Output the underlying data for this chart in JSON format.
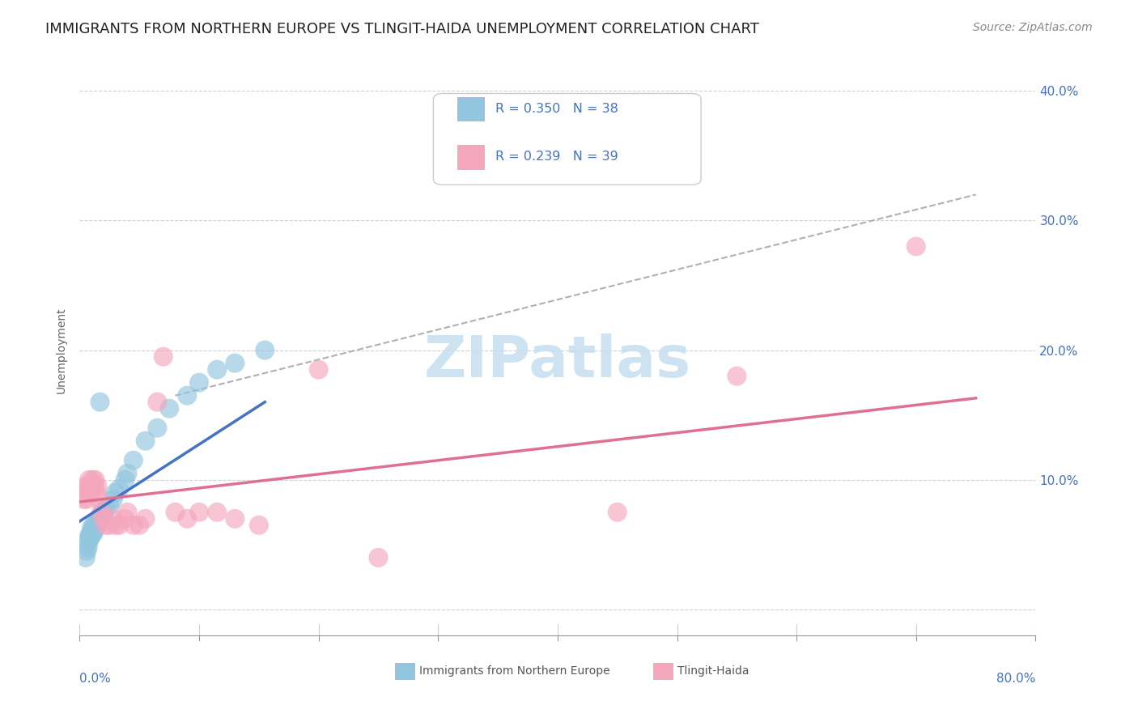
{
  "title": "IMMIGRANTS FROM NORTHERN EUROPE VS TLINGIT-HAIDA UNEMPLOYMENT CORRELATION CHART",
  "source": "Source: ZipAtlas.com",
  "ylabel": "Unemployment",
  "xlim": [
    0,
    0.8
  ],
  "ylim": [
    -0.02,
    0.42
  ],
  "xticks": [
    0.0,
    0.1,
    0.2,
    0.3,
    0.4,
    0.5,
    0.6,
    0.7,
    0.8
  ],
  "yticks": [
    0.0,
    0.1,
    0.2,
    0.3,
    0.4
  ],
  "yticklabels_right": [
    "",
    "10.0%",
    "20.0%",
    "30.0%",
    "40.0%"
  ],
  "blue_color": "#92c5de",
  "pink_color": "#f4a6bd",
  "blue_R": 0.35,
  "blue_N": 38,
  "pink_R": 0.239,
  "pink_N": 39,
  "legend_label_blue": "Immigrants from Northern Europe",
  "legend_label_pink": "Tlingit-Haida",
  "watermark": "ZIPatlas",
  "blue_x": [
    0.005,
    0.006,
    0.007,
    0.007,
    0.008,
    0.008,
    0.009,
    0.009,
    0.01,
    0.01,
    0.011,
    0.011,
    0.012,
    0.012,
    0.013,
    0.014,
    0.015,
    0.016,
    0.017,
    0.018,
    0.019,
    0.02,
    0.022,
    0.025,
    0.028,
    0.03,
    0.033,
    0.038,
    0.04,
    0.045,
    0.055,
    0.065,
    0.075,
    0.09,
    0.1,
    0.115,
    0.13,
    0.155
  ],
  "blue_y": [
    0.04,
    0.045,
    0.048,
    0.052,
    0.055,
    0.057,
    0.055,
    0.058,
    0.06,
    0.063,
    0.058,
    0.062,
    0.06,
    0.065,
    0.063,
    0.068,
    0.065,
    0.068,
    0.16,
    0.072,
    0.075,
    0.075,
    0.078,
    0.08,
    0.085,
    0.09,
    0.093,
    0.1,
    0.105,
    0.115,
    0.13,
    0.14,
    0.155,
    0.165,
    0.175,
    0.185,
    0.19,
    0.2
  ],
  "pink_x": [
    0.003,
    0.004,
    0.005,
    0.006,
    0.007,
    0.008,
    0.009,
    0.01,
    0.011,
    0.012,
    0.013,
    0.014,
    0.015,
    0.016,
    0.018,
    0.02,
    0.022,
    0.025,
    0.028,
    0.03,
    0.033,
    0.038,
    0.04,
    0.045,
    0.05,
    0.055,
    0.065,
    0.07,
    0.08,
    0.09,
    0.1,
    0.115,
    0.13,
    0.15,
    0.2,
    0.25,
    0.45,
    0.55,
    0.7
  ],
  "pink_y": [
    0.085,
    0.09,
    0.095,
    0.085,
    0.095,
    0.1,
    0.095,
    0.09,
    0.1,
    0.095,
    0.1,
    0.09,
    0.095,
    0.085,
    0.075,
    0.07,
    0.065,
    0.065,
    0.07,
    0.065,
    0.065,
    0.07,
    0.075,
    0.065,
    0.065,
    0.07,
    0.16,
    0.195,
    0.075,
    0.07,
    0.075,
    0.075,
    0.07,
    0.065,
    0.185,
    0.04,
    0.075,
    0.18,
    0.28
  ],
  "blue_line_x": [
    0.0,
    0.155
  ],
  "blue_line_y_start": 0.068,
  "blue_line_y_end": 0.16,
  "pink_line_x": [
    0.0,
    0.75
  ],
  "pink_line_y_start": 0.083,
  "pink_line_y_end": 0.163,
  "dash_line_x": [
    0.08,
    0.75
  ],
  "dash_line_y_start": 0.165,
  "dash_line_y_end": 0.32,
  "background_color": "#ffffff",
  "grid_color": "#d0d0d0",
  "title_fontsize": 13,
  "axis_label_fontsize": 10,
  "tick_fontsize": 11,
  "source_fontsize": 10,
  "watermark_fontsize": 52,
  "watermark_color": "#c5dff0",
  "legend_text_color": "#4472c4",
  "right_tick_color": "#4472c4"
}
